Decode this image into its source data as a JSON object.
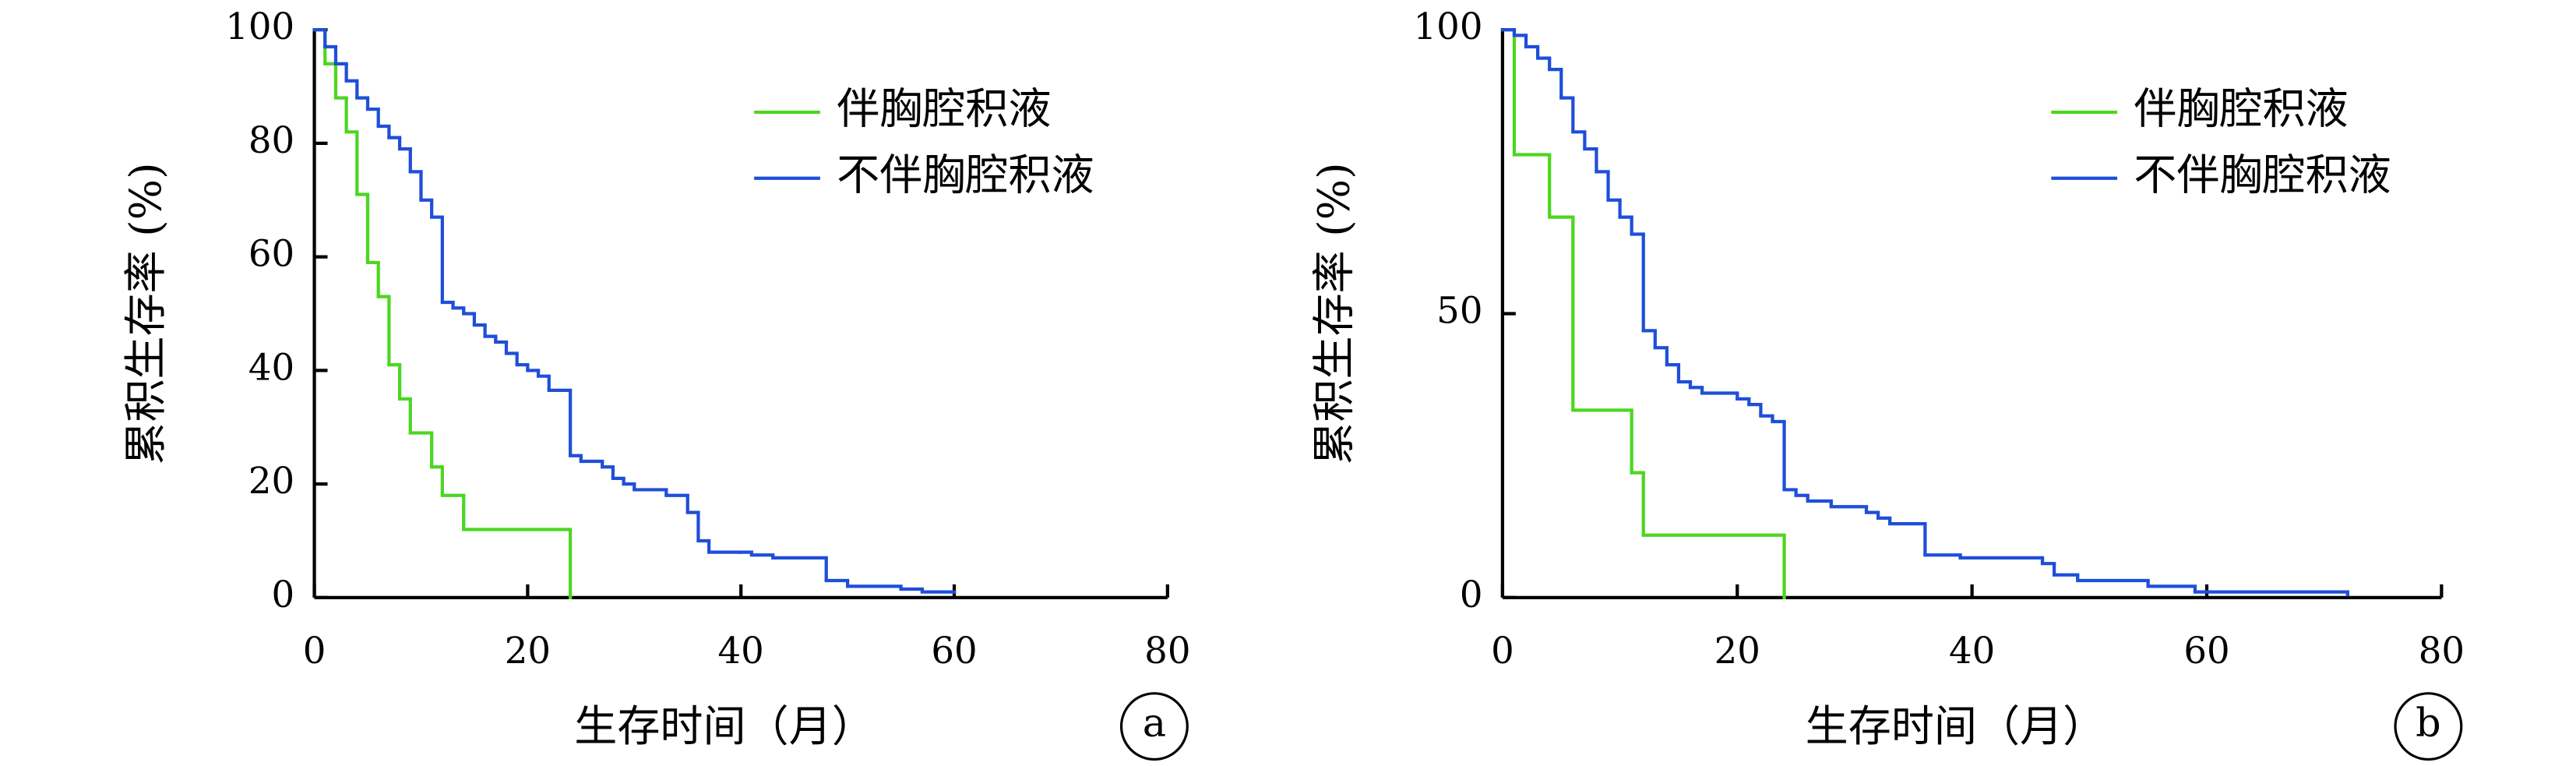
{
  "chart_data": [
    {
      "type": "step",
      "panel_label": "a",
      "xlabel": "生存时间（月）",
      "ylabel": "累积生存率 (%)",
      "xlim": [
        0,
        80
      ],
      "ylim": [
        0,
        100
      ],
      "xticks": [
        0,
        20,
        40,
        60,
        80
      ],
      "yticks": [
        0,
        20,
        40,
        60,
        80,
        100
      ],
      "legend": "upper right",
      "series": [
        {
          "name": "伴胸腔积液",
          "color": "#4cd620",
          "x": [
            0,
            1,
            2,
            3,
            4,
            5,
            6,
            7,
            8,
            9,
            11,
            12,
            14,
            24
          ],
          "values": [
            100,
            94,
            88,
            82,
            71,
            59,
            53,
            41,
            35,
            29,
            23,
            18,
            12,
            0
          ]
        },
        {
          "name": "不伴胸腔积液",
          "color": "#1f4fd8",
          "x": [
            0,
            1,
            2,
            3,
            4,
            5,
            6,
            7,
            8,
            9,
            10,
            11,
            12,
            13,
            14,
            15,
            16,
            17,
            18,
            19,
            20,
            21,
            22,
            24,
            25,
            27,
            28,
            29,
            30,
            33,
            35,
            36,
            37,
            40,
            41,
            43,
            48,
            50,
            55,
            57,
            60
          ],
          "values": [
            100,
            97,
            94,
            91,
            88,
            86,
            83,
            81,
            79,
            75,
            70,
            67,
            52,
            51,
            50,
            48,
            46,
            45,
            43,
            41,
            40,
            39,
            36.5,
            25,
            24,
            23,
            21,
            20,
            19,
            18,
            15,
            10,
            8,
            8,
            7.5,
            7,
            3,
            2,
            1.5,
            1,
            1
          ]
        }
      ]
    },
    {
      "type": "step",
      "panel_label": "b",
      "xlabel": "生存时间（月）",
      "ylabel": "累积生存率 (%)",
      "xlim": [
        0,
        80
      ],
      "ylim": [
        0,
        100
      ],
      "xticks": [
        0,
        20,
        40,
        60,
        80
      ],
      "yticks": [
        0,
        50,
        100
      ],
      "legend": "upper right",
      "series": [
        {
          "name": "伴胸腔积液",
          "color": "#4cd620",
          "x": [
            0,
            1,
            4,
            6,
            11,
            12,
            24
          ],
          "values": [
            100,
            78,
            67,
            33,
            22,
            11,
            0
          ]
        },
        {
          "name": "不伴胸腔积液",
          "color": "#1f4fd8",
          "x": [
            0,
            1,
            2,
            3,
            4,
            5,
            6,
            7,
            8,
            9,
            10,
            11,
            12,
            13,
            14,
            15,
            16,
            17,
            20,
            21,
            22,
            23,
            24,
            25,
            26,
            28,
            31,
            32,
            33,
            36,
            39,
            46,
            47,
            49,
            55,
            59,
            72
          ],
          "values": [
            100,
            99,
            97,
            95,
            93,
            88,
            82,
            79,
            75,
            70,
            67,
            64,
            47,
            44,
            41,
            38,
            37,
            36,
            35,
            34,
            32,
            31,
            19,
            18,
            17,
            16,
            15,
            14,
            13,
            7.5,
            7,
            6,
            4,
            3,
            2,
            1,
            0.5
          ]
        }
      ]
    }
  ]
}
